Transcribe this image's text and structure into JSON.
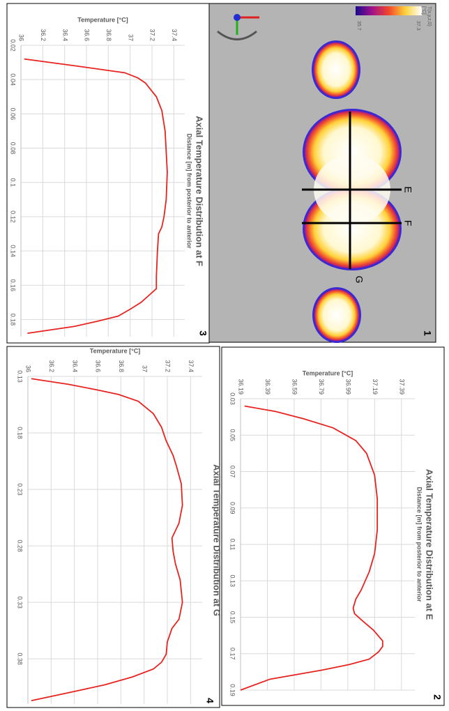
{
  "image": {
    "panel_label": "1",
    "section_labels": [
      "E",
      "F",
      "G"
    ],
    "colorbar_title": "T(x,y,z,0)",
    "colorbar_unit": "[°C]",
    "colorbar_max": 37.3,
    "colorbar_min": 35.7
  },
  "chart_data": [
    {
      "type": "line",
      "panel_label": "2",
      "title": "Axial Temperature Distribution at E",
      "x_label": "Distance [m] from posterior to anterior",
      "y_label": "Temperature [°C]",
      "x": [
        0.034,
        0.037,
        0.041,
        0.046,
        0.053,
        0.06,
        0.072,
        0.085,
        0.102,
        0.115,
        0.125,
        0.135,
        0.14,
        0.145,
        0.148,
        0.152,
        0.157,
        0.163,
        0.166,
        0.169,
        0.173,
        0.176,
        0.179,
        0.184,
        0.19
      ],
      "series": [
        {
          "color": "#e8231f",
          "values": [
            36.22,
            36.45,
            36.66,
            36.88,
            37.05,
            37.13,
            37.19,
            37.21,
            37.21,
            37.19,
            37.15,
            37.09,
            37.05,
            37.03,
            37.04,
            37.1,
            37.18,
            37.25,
            37.25,
            37.22,
            37.15,
            37.0,
            36.8,
            36.41,
            36.19
          ]
        }
      ],
      "xlim": [
        0.03,
        0.19
      ],
      "xticks": [
        0.03,
        0.05,
        0.07,
        0.09,
        0.11,
        0.13,
        0.15,
        0.17,
        0.19
      ],
      "ylim": [
        36.19,
        37.49
      ],
      "yticks": [
        36.19,
        36.39,
        36.59,
        36.79,
        36.99,
        37.19,
        37.39
      ],
      "grid": true
    },
    {
      "type": "line",
      "panel_label": "3",
      "title": "Axial Temperature Distribution at F",
      "x_label": "Distance [m] from posterior to anterior",
      "y_label": "Temperature [°C]",
      "x": [
        0.028,
        0.032,
        0.036,
        0.039,
        0.042,
        0.05,
        0.058,
        0.07,
        0.094,
        0.11,
        0.12,
        0.126,
        0.13,
        0.14,
        0.155,
        0.162,
        0.166,
        0.17,
        0.174,
        0.178,
        0.181,
        0.184,
        0.188
      ],
      "series": [
        {
          "color": "#e8231f",
          "values": [
            36.03,
            36.5,
            36.95,
            37.07,
            37.14,
            37.24,
            37.29,
            37.32,
            37.34,
            37.33,
            37.31,
            37.29,
            37.26,
            37.25,
            37.24,
            37.24,
            37.17,
            37.1,
            37.0,
            36.89,
            36.7,
            36.49,
            36.06
          ]
        }
      ],
      "xlim": [
        0.02,
        0.19
      ],
      "xticks": [
        0.02,
        0.04,
        0.06,
        0.08,
        0.1,
        0.12,
        0.14,
        0.16,
        0.18
      ],
      "ylim": [
        36,
        37.5
      ],
      "yticks": [
        36,
        36.2,
        36.4,
        36.6,
        36.8,
        37,
        37.2,
        37.4
      ],
      "grid": true
    },
    {
      "type": "line",
      "panel_label": "4",
      "title": "Axial Temperature Distribution at G",
      "y_label": "Temperature [°C]",
      "x": [
        0.132,
        0.137,
        0.142,
        0.146,
        0.152,
        0.163,
        0.175,
        0.187,
        0.2,
        0.21,
        0.225,
        0.244,
        0.26,
        0.273,
        0.285,
        0.296,
        0.31,
        0.33,
        0.345,
        0.353,
        0.365,
        0.376,
        0.383,
        0.389,
        0.396,
        0.403,
        0.41,
        0.417
      ],
      "series": [
        {
          "color": "#e8231f",
          "values": [
            36.03,
            36.35,
            36.6,
            36.78,
            36.95,
            37.08,
            37.15,
            37.19,
            37.25,
            37.28,
            37.32,
            37.33,
            37.3,
            37.24,
            37.25,
            37.27,
            37.31,
            37.33,
            37.3,
            37.24,
            37.2,
            37.19,
            37.15,
            37.08,
            36.9,
            36.66,
            36.35,
            36.03
          ]
        }
      ],
      "xlim": [
        0.13,
        0.42
      ],
      "xticks": [
        0.13,
        0.18,
        0.23,
        0.28,
        0.33,
        0.38
      ],
      "ylim": [
        36,
        37.5
      ],
      "yticks": [
        36,
        36.2,
        36.4,
        36.6,
        36.8,
        37,
        37.2,
        37.4
      ],
      "grid": true
    }
  ]
}
